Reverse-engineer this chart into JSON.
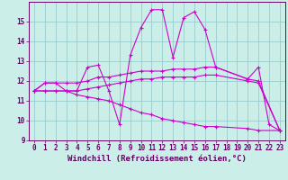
{
  "bg_color": "#cceee8",
  "line_color": "#cc00cc",
  "grid_color": "#99cccc",
  "xlabel": "Windchill (Refroidissement éolien,°C)",
  "xlabel_fontsize": 6.5,
  "tick_fontsize": 5.5,
  "xlim": [
    -0.5,
    23.5
  ],
  "ylim": [
    9,
    16
  ],
  "yticks": [
    9,
    10,
    11,
    12,
    13,
    14,
    15
  ],
  "xticks": [
    0,
    1,
    2,
    3,
    4,
    5,
    6,
    7,
    8,
    9,
    10,
    11,
    12,
    13,
    14,
    15,
    16,
    17,
    18,
    19,
    20,
    21,
    22,
    23
  ],
  "lines": [
    {
      "x": [
        0,
        1,
        2,
        3,
        4,
        5,
        6,
        7,
        8,
        9,
        10,
        11,
        12,
        13,
        14,
        15,
        16,
        17,
        20,
        21,
        22,
        23
      ],
      "y": [
        11.5,
        11.9,
        11.9,
        11.5,
        11.5,
        12.7,
        12.8,
        11.5,
        9.8,
        13.3,
        14.7,
        15.6,
        15.6,
        13.2,
        15.2,
        15.5,
        14.6,
        12.7,
        12.1,
        12.7,
        9.8,
        9.5
      ]
    },
    {
      "x": [
        0,
        1,
        2,
        3,
        4,
        5,
        6,
        7,
        8,
        9,
        10,
        11,
        12,
        13,
        14,
        15,
        16,
        17,
        20,
        21,
        23
      ],
      "y": [
        11.5,
        11.9,
        11.9,
        11.9,
        11.9,
        12.0,
        12.2,
        12.2,
        12.3,
        12.4,
        12.5,
        12.5,
        12.5,
        12.6,
        12.6,
        12.6,
        12.7,
        12.7,
        12.1,
        12.0,
        9.5
      ]
    },
    {
      "x": [
        0,
        1,
        2,
        3,
        4,
        5,
        6,
        7,
        8,
        9,
        10,
        11,
        12,
        13,
        14,
        15,
        16,
        17,
        20,
        21,
        23
      ],
      "y": [
        11.5,
        11.5,
        11.5,
        11.5,
        11.5,
        11.6,
        11.7,
        11.8,
        11.9,
        12.0,
        12.1,
        12.1,
        12.2,
        12.2,
        12.2,
        12.2,
        12.3,
        12.3,
        12.0,
        11.9,
        9.5
      ]
    },
    {
      "x": [
        0,
        1,
        2,
        3,
        4,
        5,
        6,
        7,
        8,
        9,
        10,
        11,
        12,
        13,
        14,
        15,
        16,
        17,
        20,
        21,
        23
      ],
      "y": [
        11.5,
        11.5,
        11.5,
        11.5,
        11.3,
        11.2,
        11.1,
        11.0,
        10.8,
        10.6,
        10.4,
        10.3,
        10.1,
        10.0,
        9.9,
        9.8,
        9.7,
        9.7,
        9.6,
        9.5,
        9.5
      ]
    }
  ]
}
